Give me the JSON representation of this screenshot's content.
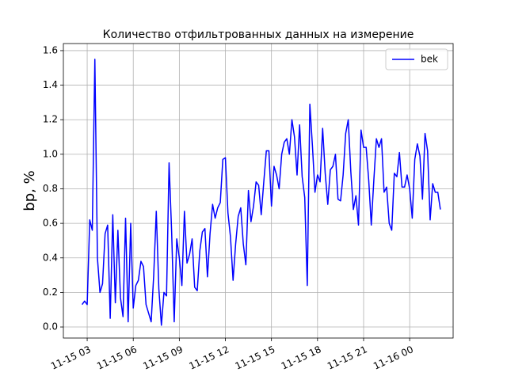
{
  "chart_data": {
    "type": "line",
    "title": "Количество отфильтрованных данных на измерение",
    "ylabel": "bp, %",
    "legend": "upper right",
    "grid": true,
    "xlim": [
      1.45,
      26.83
    ],
    "ylim": [
      -0.064,
      1.641
    ],
    "xticks": [
      {
        "value": 3,
        "label": "11-15 03"
      },
      {
        "value": 6,
        "label": "11-15 06"
      },
      {
        "value": 9,
        "label": "11-15 09"
      },
      {
        "value": 12,
        "label": "11-15 12"
      },
      {
        "value": 15,
        "label": "11-15 15"
      },
      {
        "value": 18,
        "label": "11-15 18"
      },
      {
        "value": 21,
        "label": "11-15 21"
      },
      {
        "value": 24,
        "label": "11-16 00"
      }
    ],
    "yticks": [
      {
        "value": 0,
        "label": "0.0"
      },
      0.2,
      0.4,
      0.6,
      0.8,
      {
        "value": 1,
        "label": "1.0"
      },
      1.2,
      1.4,
      1.6
    ],
    "x": [
      2.667,
      2.833,
      3,
      3.167,
      3.333,
      3.5,
      3.667,
      3.833,
      4,
      4.167,
      4.333,
      4.5,
      4.667,
      4.833,
      5,
      5.167,
      5.333,
      5.5,
      5.667,
      5.833,
      6,
      6.167,
      6.333,
      6.5,
      6.667,
      6.833,
      7,
      7.167,
      7.333,
      7.5,
      7.667,
      7.833,
      8,
      8.167,
      8.333,
      8.5,
      8.667,
      8.833,
      9,
      9.167,
      9.333,
      9.5,
      9.667,
      9.833,
      10,
      10.167,
      10.333,
      10.5,
      10.667,
      10.833,
      11,
      11.167,
      11.333,
      11.5,
      11.667,
      11.833,
      12,
      12.167,
      12.333,
      12.5,
      12.667,
      12.833,
      13,
      13.167,
      13.333,
      13.5,
      13.667,
      13.833,
      14,
      14.167,
      14.333,
      14.5,
      14.667,
      14.833,
      15,
      15.167,
      15.333,
      15.5,
      15.667,
      15.833,
      16,
      16.167,
      16.333,
      16.5,
      16.667,
      16.833,
      17,
      17.167,
      17.333,
      17.5,
      17.667,
      17.833,
      18,
      18.167,
      18.333,
      18.5,
      18.667,
      18.833,
      19,
      19.167,
      19.333,
      19.5,
      19.667,
      19.833,
      20,
      20.167,
      20.333,
      20.5,
      20.667,
      20.833,
      21,
      21.167,
      21.333,
      21.5,
      21.667,
      21.833,
      22,
      22.167,
      22.333,
      22.5,
      22.667,
      22.833,
      23,
      23.167,
      23.333,
      23.5,
      23.667,
      23.833,
      24,
      24.167,
      24.333,
      24.5,
      24.667,
      24.833,
      25,
      25.167,
      25.333,
      25.5,
      25.667,
      25.833,
      26
    ],
    "series": [
      {
        "name": "bek",
        "color": "#0000ff",
        "values": [
          0.13,
          0.15,
          0.13,
          0.62,
          0.56,
          1.55,
          0.4,
          0.2,
          0.25,
          0.54,
          0.59,
          0.05,
          0.65,
          0.14,
          0.56,
          0.17,
          0.06,
          0.63,
          0.03,
          0.6,
          0.11,
          0.24,
          0.27,
          0.38,
          0.35,
          0.13,
          0.08,
          0.03,
          0.3,
          0.67,
          0.22,
          0.01,
          0.2,
          0.18,
          0.95,
          0.55,
          0.03,
          0.51,
          0.4,
          0.24,
          0.67,
          0.37,
          0.42,
          0.51,
          0.23,
          0.21,
          0.44,
          0.55,
          0.57,
          0.29,
          0.54,
          0.71,
          0.63,
          0.69,
          0.72,
          0.97,
          0.98,
          0.66,
          0.52,
          0.27,
          0.48,
          0.64,
          0.69,
          0.48,
          0.36,
          0.79,
          0.61,
          0.7,
          0.84,
          0.82,
          0.65,
          0.84,
          1.02,
          1.02,
          0.7,
          0.93,
          0.88,
          0.8,
          1.0,
          1.07,
          1.09,
          1.0,
          1.2,
          1.1,
          0.88,
          1.17,
          0.87,
          0.75,
          0.24,
          1.29,
          1.05,
          0.78,
          0.88,
          0.84,
          1.15,
          0.89,
          0.71,
          0.91,
          0.93,
          1.0,
          0.74,
          0.73,
          0.88,
          1.12,
          1.2,
          0.9,
          0.68,
          0.76,
          0.59,
          1.14,
          1.04,
          1.04,
          0.85,
          0.59,
          0.85,
          1.09,
          1.04,
          1.09,
          0.78,
          0.81,
          0.6,
          0.56,
          0.89,
          0.87,
          1.01,
          0.81,
          0.81,
          0.88,
          0.8,
          0.63,
          0.97,
          1.06,
          0.99,
          0.74,
          1.12,
          1.02,
          0.62,
          0.83,
          0.78,
          0.78,
          0.68
        ]
      }
    ]
  }
}
